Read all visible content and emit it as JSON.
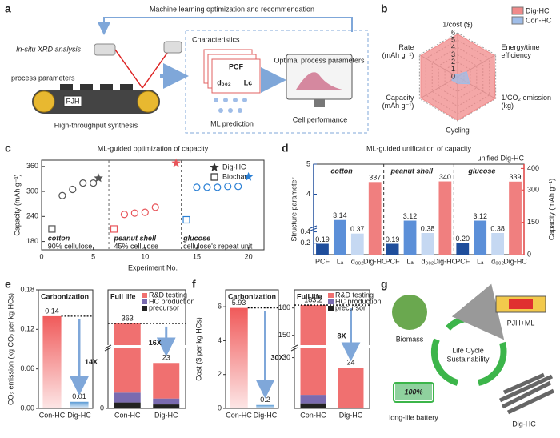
{
  "panel_labels": [
    "a",
    "b",
    "c",
    "d",
    "e",
    "f",
    "g"
  ],
  "diagram_a": {
    "loop_title": "Machine learning optimization and recommendation",
    "xrd": "In-situ XRD analysis",
    "process": "process parameters",
    "pjh": "PJH",
    "synthesis": "High-throughput synthesis",
    "characteristics": "Characteristics",
    "features": [
      "PCF",
      "d₀₀₂",
      "Lc"
    ],
    "optimal": "Optimal process parameters",
    "ml": "ML prediction",
    "cell": "Cell performance"
  },
  "diagram_g": {
    "biomass": "Biomass",
    "pjh_ml": "PJH+ML",
    "center": [
      "Life Cycle",
      "Sustainability"
    ],
    "battery": "long-life battery",
    "battery_level": "100%",
    "product": "Dig-HC"
  },
  "chart_data": [
    {
      "type": "radar",
      "axes": [
        [
          "1/cost ($)"
        ],
        [
          "Energy/time",
          "efficiency"
        ],
        [
          "1/CO₂ emission",
          "(kg)"
        ],
        [
          "Cycling"
        ],
        [
          "Capacity",
          "(mAh g⁻¹)"
        ],
        [
          "Rate",
          "(mAh g⁻¹)"
        ]
      ],
      "rlim": [
        0,
        6
      ],
      "rticks": [
        0,
        1,
        2,
        3,
        4,
        5,
        6
      ],
      "legend": "upper right",
      "series": [
        {
          "name": "Dig-HC",
          "color": "#f08a8a",
          "values": [
            5.8,
            5.8,
            5.9,
            5.9,
            5.8,
            5.8
          ]
        },
        {
          "name": "Con-HC",
          "color": "#9fbde8",
          "values": [
            0.3,
            1.4,
            1.9,
            0.9,
            0.9,
            0.5
          ]
        }
      ]
    },
    {
      "type": "scatter",
      "title": "ML-guided optimization of capacity",
      "xlabel": "Experiment No.",
      "ylabel": "Capacity (mAh g⁻¹)",
      "xlim": [
        0,
        21.5
      ],
      "xticks": [
        0,
        5,
        10,
        15,
        20
      ],
      "ylim": [
        160,
        375
      ],
      "yticks": [
        180,
        240,
        300,
        360
      ],
      "legend": "upper right",
      "series": [
        {
          "name": "Dig-HC",
          "marker": "star",
          "color": "#333333",
          "x": [
            5.5,
            13,
            20
          ],
          "values": [
            332,
            368,
            335
          ],
          "colors": [
            "#555555",
            "#e8555a",
            "#2a7fd4"
          ]
        },
        {
          "name": "Biochar",
          "marker": "square",
          "color": "#333333",
          "x": [
            1,
            7,
            14
          ],
          "values": [
            210,
            210,
            232
          ],
          "colors": [
            "#555555",
            "#e8555a",
            "#2a7fd4"
          ]
        },
        {
          "marker": "circle",
          "x": [
            2,
            3,
            4,
            5,
            8,
            9,
            10,
            11,
            15,
            16,
            17,
            18,
            19
          ],
          "values": [
            290,
            305,
            320,
            320,
            245,
            248,
            250,
            262,
            310,
            310,
            310,
            312,
            312
          ],
          "colors": [
            "#555555",
            "#555555",
            "#555555",
            "#555555",
            "#e8555a",
            "#e8555a",
            "#e8555a",
            "#e8555a",
            "#2a7fd4",
            "#2a7fd4",
            "#2a7fd4",
            "#2a7fd4",
            "#2a7fd4"
          ]
        }
      ],
      "groups": [
        {
          "name": "cotton",
          "note": "90% cellulose"
        },
        {
          "name": "peanut shell",
          "note": "45% cellulose"
        },
        {
          "name": "glucose",
          "note": "cellulose's repeat unit"
        }
      ]
    },
    {
      "type": "grouped-bar",
      "title": "ML-guided unification of capacity",
      "ylabel": "Structure parameter",
      "y2label": "Capacity (mAh g⁻¹)",
      "ylim": [
        0,
        5
      ],
      "y_break": [
        0.45,
        3
      ],
      "yticks": [
        0.2,
        0.4,
        4,
        5
      ],
      "y2lim": [
        0,
        420
      ],
      "y2ticks": [
        0,
        150,
        300,
        400
      ],
      "categories": [
        "PCF",
        "Lₐ",
        "d₀₀₂",
        "Dig-HC"
      ],
      "category_axis": [
        "y",
        "y",
        "y",
        "y2"
      ],
      "colors": [
        "#1f4e9c",
        "#5b8fd8",
        "#c5d8f2",
        "#f07f7f"
      ],
      "annotation": "unified Dig-HC",
      "groups": [
        {
          "name": "cotton",
          "values": [
            0.19,
            3.14,
            0.37,
            337
          ],
          "value_labels": [
            "0.19",
            "3.14",
            "0.37",
            "337"
          ]
        },
        {
          "name": "peanut shell",
          "values": [
            0.19,
            3.12,
            0.38,
            340
          ],
          "value_labels": [
            "0.19",
            "3.12",
            "0.38",
            "340"
          ]
        },
        {
          "name": "glucose",
          "values": [
            0.2,
            3.12,
            0.38,
            339
          ],
          "value_labels": [
            "0.20",
            "3.12",
            "0.38",
            "339"
          ]
        }
      ]
    },
    {
      "type": "split-bar",
      "ylabel": "CO₂ emission (kg CO₂ per kg HCs)",
      "categories": [
        "Con-HC",
        "Dig-HC"
      ],
      "left": {
        "title": "Carbonization",
        "values": [
          0.14,
          0.01
        ],
        "colors": [
          "#f05a5a",
          "#5b9bd5"
        ],
        "ylim": [
          0,
          0.18
        ],
        "yticks": [
          {
            "value": 0,
            "label": "0.00"
          },
          0.06,
          0.12,
          0.18
        ],
        "ratio": "14X"
      },
      "right": {
        "title": "Full life",
        "ylim": [
          0,
          400
        ],
        "y_break": [
          30,
          340
        ],
        "yticks": [
          0
        ],
        "series": [
          {
            "name": "precursor",
            "color": "#222222",
            "values": [
              3,
              2
            ]
          },
          {
            "name": "HC production",
            "color": "#7a6bb0",
            "values": [
              5,
              3
            ]
          },
          {
            "name": "R&D testing",
            "color": "#f07070",
            "values": [
              355,
              18
            ]
          }
        ],
        "totals": [
          363,
          23
        ],
        "ratio": "16X"
      }
    },
    {
      "type": "split-bar",
      "ylabel": "Cost ($ per kg HCs)",
      "categories": [
        "Con-HC",
        "Dig-HC"
      ],
      "left": {
        "title": "Carbonization",
        "values": [
          5.93,
          0.2
        ],
        "colors": [
          "#f05a5a",
          "#5b9bd5"
        ],
        "ylim": [
          0,
          7
        ],
        "yticks": [
          0,
          2,
          4,
          6
        ],
        "ratio": "30X"
      },
      "right": {
        "title": "Full life",
        "ylim": [
          0,
          200
        ],
        "y_break": [
          35,
          140
        ],
        "yticks": [
          30,
          150,
          180
        ],
        "series": [
          {
            "name": "precursor",
            "color": "#222222",
            "values": [
              3,
              0
            ]
          },
          {
            "name": "HC production",
            "color": "#7a6bb0",
            "values": [
              5,
              0
            ]
          },
          {
            "name": "R&D testing",
            "color": "#f07070",
            "values": [
              175.2,
              24
            ]
          }
        ],
        "totals": [
          183.2,
          24
        ],
        "ratio": "8X"
      }
    }
  ]
}
